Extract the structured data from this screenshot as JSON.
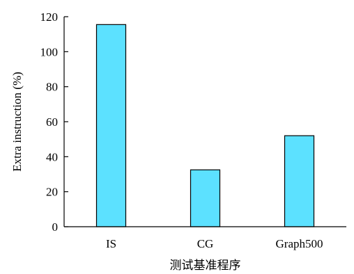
{
  "chart_data": {
    "type": "bar",
    "categories": [
      "IS",
      "CG",
      "Graph500"
    ],
    "values": [
      115.5,
      32.5,
      52.0
    ],
    "xlabel": "测试基准程序",
    "ylabel": "Extra instruction (%)",
    "ylim": [
      0,
      120
    ],
    "yticks": [
      0,
      20,
      40,
      60,
      80,
      100,
      120
    ],
    "bar_color": "#5CE1FF",
    "grid": false,
    "legend": "none"
  }
}
